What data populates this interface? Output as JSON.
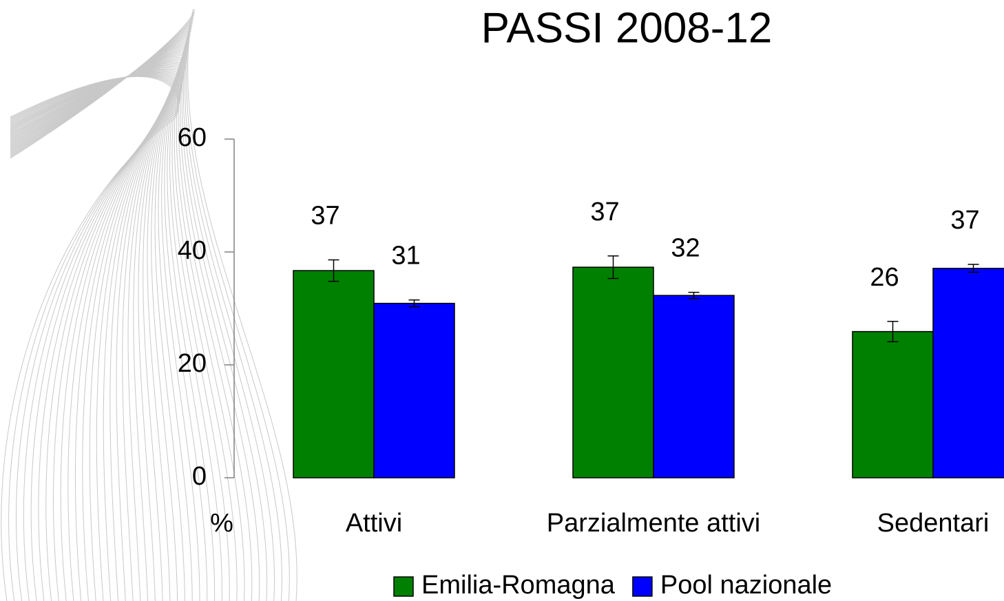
{
  "chart_data": {
    "type": "bar",
    "title": "PASSI 2008-12",
    "title_color": "#cc0000",
    "y_label": "%",
    "categories": [
      "Attivi",
      "Parzialmente attivi",
      "Sedentari"
    ],
    "series": [
      {
        "name": "Emilia-Romagna",
        "color": "#008000",
        "values": [
          36.7,
          37.3,
          25.9
        ],
        "value_labels": [
          "37",
          "37",
          "26"
        ],
        "errors": [
          1.9,
          2.0,
          1.8
        ]
      },
      {
        "name": "Pool nazionale",
        "color": "#0000ff",
        "values": [
          30.9,
          32.3,
          37.1
        ],
        "value_labels": [
          "31",
          "32",
          "37"
        ],
        "errors": [
          0.6,
          0.55,
          0.7
        ]
      }
    ],
    "ylim": [
      0,
      60
    ],
    "yticks": [
      0,
      20,
      40,
      60
    ],
    "legend": "bottom"
  }
}
